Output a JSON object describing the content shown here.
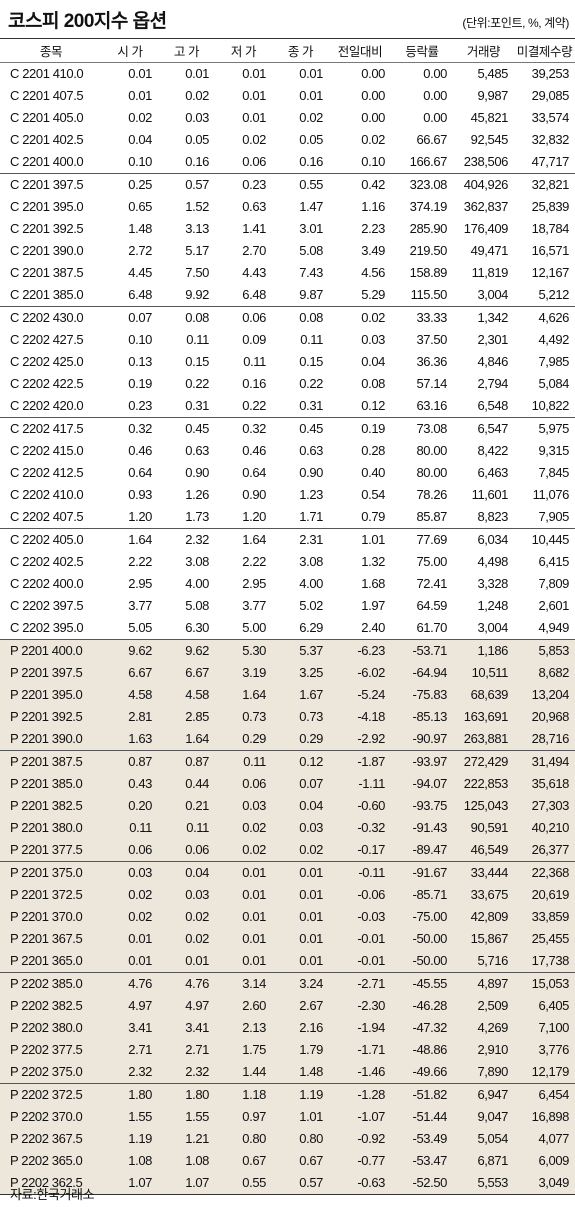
{
  "header": {
    "title": "코스피 200지수 옵션",
    "unit": "(단위:포인트, %, 계약)"
  },
  "table": {
    "columns": [
      "종목",
      "시 가",
      "고 가",
      "저 가",
      "종 가",
      "전일대비",
      "등락률",
      "거래량",
      "미결제수량"
    ],
    "groups": [
      [
        [
          "C 2201 410.0",
          "0.01",
          "0.01",
          "0.01",
          "0.01",
          "0.00",
          "0.00",
          "5,485",
          "39,253"
        ],
        [
          "C 2201 407.5",
          "0.01",
          "0.02",
          "0.01",
          "0.01",
          "0.00",
          "0.00",
          "9,987",
          "29,085"
        ],
        [
          "C 2201 405.0",
          "0.02",
          "0.03",
          "0.01",
          "0.02",
          "0.00",
          "0.00",
          "45,821",
          "33,574"
        ],
        [
          "C 2201 402.5",
          "0.04",
          "0.05",
          "0.02",
          "0.05",
          "0.02",
          "66.67",
          "92,545",
          "32,832"
        ],
        [
          "C 2201 400.0",
          "0.10",
          "0.16",
          "0.06",
          "0.16",
          "0.10",
          "166.67",
          "238,506",
          "47,717"
        ]
      ],
      [
        [
          "C 2201 397.5",
          "0.25",
          "0.57",
          "0.23",
          "0.55",
          "0.42",
          "323.08",
          "404,926",
          "32,821"
        ],
        [
          "C 2201 395.0",
          "0.65",
          "1.52",
          "0.63",
          "1.47",
          "1.16",
          "374.19",
          "362,837",
          "25,839"
        ],
        [
          "C 2201 392.5",
          "1.48",
          "3.13",
          "1.41",
          "3.01",
          "2.23",
          "285.90",
          "176,409",
          "18,784"
        ],
        [
          "C 2201 390.0",
          "2.72",
          "5.17",
          "2.70",
          "5.08",
          "3.49",
          "219.50",
          "49,471",
          "16,571"
        ],
        [
          "C 2201 387.5",
          "4.45",
          "7.50",
          "4.43",
          "7.43",
          "4.56",
          "158.89",
          "11,819",
          "12,167"
        ],
        [
          "C 2201 385.0",
          "6.48",
          "9.92",
          "6.48",
          "9.87",
          "5.29",
          "115.50",
          "3,004",
          "5,212"
        ]
      ],
      [
        [
          "C 2202 430.0",
          "0.07",
          "0.08",
          "0.06",
          "0.08",
          "0.02",
          "33.33",
          "1,342",
          "4,626"
        ],
        [
          "C 2202 427.5",
          "0.10",
          "0.11",
          "0.09",
          "0.11",
          "0.03",
          "37.50",
          "2,301",
          "4,492"
        ],
        [
          "C 2202 425.0",
          "0.13",
          "0.15",
          "0.11",
          "0.15",
          "0.04",
          "36.36",
          "4,846",
          "7,985"
        ],
        [
          "C 2202 422.5",
          "0.19",
          "0.22",
          "0.16",
          "0.22",
          "0.08",
          "57.14",
          "2,794",
          "5,084"
        ],
        [
          "C 2202 420.0",
          "0.23",
          "0.31",
          "0.22",
          "0.31",
          "0.12",
          "63.16",
          "6,548",
          "10,822"
        ]
      ],
      [
        [
          "C 2202 417.5",
          "0.32",
          "0.45",
          "0.32",
          "0.45",
          "0.19",
          "73.08",
          "6,547",
          "5,975"
        ],
        [
          "C 2202 415.0",
          "0.46",
          "0.63",
          "0.46",
          "0.63",
          "0.28",
          "80.00",
          "8,422",
          "9,315"
        ],
        [
          "C 2202 412.5",
          "0.64",
          "0.90",
          "0.64",
          "0.90",
          "0.40",
          "80.00",
          "6,463",
          "7,845"
        ],
        [
          "C 2202 410.0",
          "0.93",
          "1.26",
          "0.90",
          "1.23",
          "0.54",
          "78.26",
          "11,601",
          "11,076"
        ],
        [
          "C 2202 407.5",
          "1.20",
          "1.73",
          "1.20",
          "1.71",
          "0.79",
          "85.87",
          "8,823",
          "7,905"
        ]
      ],
      [
        [
          "C 2202 405.0",
          "1.64",
          "2.32",
          "1.64",
          "2.31",
          "1.01",
          "77.69",
          "6,034",
          "10,445"
        ],
        [
          "C 2202 402.5",
          "2.22",
          "3.08",
          "2.22",
          "3.08",
          "1.32",
          "75.00",
          "4,498",
          "6,415"
        ],
        [
          "C 2202 400.0",
          "2.95",
          "4.00",
          "2.95",
          "4.00",
          "1.68",
          "72.41",
          "3,328",
          "7,809"
        ],
        [
          "C 2202 397.5",
          "3.77",
          "5.08",
          "3.77",
          "5.02",
          "1.97",
          "64.59",
          "1,248",
          "2,601"
        ],
        [
          "C 2202 395.0",
          "5.05",
          "6.30",
          "5.00",
          "6.29",
          "2.40",
          "61.70",
          "3,004",
          "4,949"
        ]
      ],
      [
        [
          "P 2201 400.0",
          "9.62",
          "9.62",
          "5.30",
          "5.37",
          "-6.23",
          "-53.71",
          "1,186",
          "5,853"
        ],
        [
          "P 2201 397.5",
          "6.67",
          "6.67",
          "3.19",
          "3.25",
          "-6.02",
          "-64.94",
          "10,511",
          "8,682"
        ],
        [
          "P 2201 395.0",
          "4.58",
          "4.58",
          "1.64",
          "1.67",
          "-5.24",
          "-75.83",
          "68,639",
          "13,204"
        ],
        [
          "P 2201 392.5",
          "2.81",
          "2.85",
          "0.73",
          "0.73",
          "-4.18",
          "-85.13",
          "163,691",
          "20,968"
        ],
        [
          "P 2201 390.0",
          "1.63",
          "1.64",
          "0.29",
          "0.29",
          "-2.92",
          "-90.97",
          "263,881",
          "28,716"
        ]
      ],
      [
        [
          "P 2201 387.5",
          "0.87",
          "0.87",
          "0.11",
          "0.12",
          "-1.87",
          "-93.97",
          "272,429",
          "31,494"
        ],
        [
          "P 2201 385.0",
          "0.43",
          "0.44",
          "0.06",
          "0.07",
          "-1.11",
          "-94.07",
          "222,853",
          "35,618"
        ],
        [
          "P 2201 382.5",
          "0.20",
          "0.21",
          "0.03",
          "0.04",
          "-0.60",
          "-93.75",
          "125,043",
          "27,303"
        ],
        [
          "P 2201 380.0",
          "0.11",
          "0.11",
          "0.02",
          "0.03",
          "-0.32",
          "-91.43",
          "90,591",
          "40,210"
        ],
        [
          "P 2201 377.5",
          "0.06",
          "0.06",
          "0.02",
          "0.02",
          "-0.17",
          "-89.47",
          "46,549",
          "26,377"
        ]
      ],
      [
        [
          "P 2201 375.0",
          "0.03",
          "0.04",
          "0.01",
          "0.01",
          "-0.11",
          "-91.67",
          "33,444",
          "22,368"
        ],
        [
          "P 2201 372.5",
          "0.02",
          "0.03",
          "0.01",
          "0.01",
          "-0.06",
          "-85.71",
          "33,675",
          "20,619"
        ],
        [
          "P 2201 370.0",
          "0.02",
          "0.02",
          "0.01",
          "0.01",
          "-0.03",
          "-75.00",
          "42,809",
          "33,859"
        ],
        [
          "P 2201 367.5",
          "0.01",
          "0.02",
          "0.01",
          "0.01",
          "-0.01",
          "-50.00",
          "15,867",
          "25,455"
        ],
        [
          "P 2201 365.0",
          "0.01",
          "0.01",
          "0.01",
          "0.01",
          "-0.01",
          "-50.00",
          "5,716",
          "17,738"
        ]
      ],
      [
        [
          "P 2202 385.0",
          "4.76",
          "4.76",
          "3.14",
          "3.24",
          "-2.71",
          "-45.55",
          "4,897",
          "15,053"
        ],
        [
          "P 2202 382.5",
          "4.97",
          "4.97",
          "2.60",
          "2.67",
          "-2.30",
          "-46.28",
          "2,509",
          "6,405"
        ],
        [
          "P 2202 380.0",
          "3.41",
          "3.41",
          "2.13",
          "2.16",
          "-1.94",
          "-47.32",
          "4,269",
          "7,100"
        ],
        [
          "P 2202 377.5",
          "2.71",
          "2.71",
          "1.75",
          "1.79",
          "-1.71",
          "-48.86",
          "2,910",
          "3,776"
        ],
        [
          "P 2202 375.0",
          "2.32",
          "2.32",
          "1.44",
          "1.48",
          "-1.46",
          "-49.66",
          "7,890",
          "12,179"
        ]
      ],
      [
        [
          "P 2202 372.5",
          "1.80",
          "1.80",
          "1.18",
          "1.19",
          "-1.28",
          "-51.82",
          "6,947",
          "6,454"
        ],
        [
          "P 2202 370.0",
          "1.55",
          "1.55",
          "0.97",
          "1.01",
          "-1.07",
          "-51.44",
          "9,047",
          "16,898"
        ],
        [
          "P 2202 367.5",
          "1.19",
          "1.21",
          "0.80",
          "0.80",
          "-0.92",
          "-53.49",
          "5,054",
          "4,077"
        ],
        [
          "P 2202 365.0",
          "1.08",
          "1.08",
          "0.67",
          "0.67",
          "-0.77",
          "-53.47",
          "6,871",
          "6,009"
        ],
        [
          "P 2202 362.5",
          "1.07",
          "1.07",
          "0.55",
          "0.57",
          "-0.63",
          "-52.50",
          "5,553",
          "3,049"
        ]
      ]
    ]
  },
  "footer": {
    "source": "자료:한국거래소"
  }
}
